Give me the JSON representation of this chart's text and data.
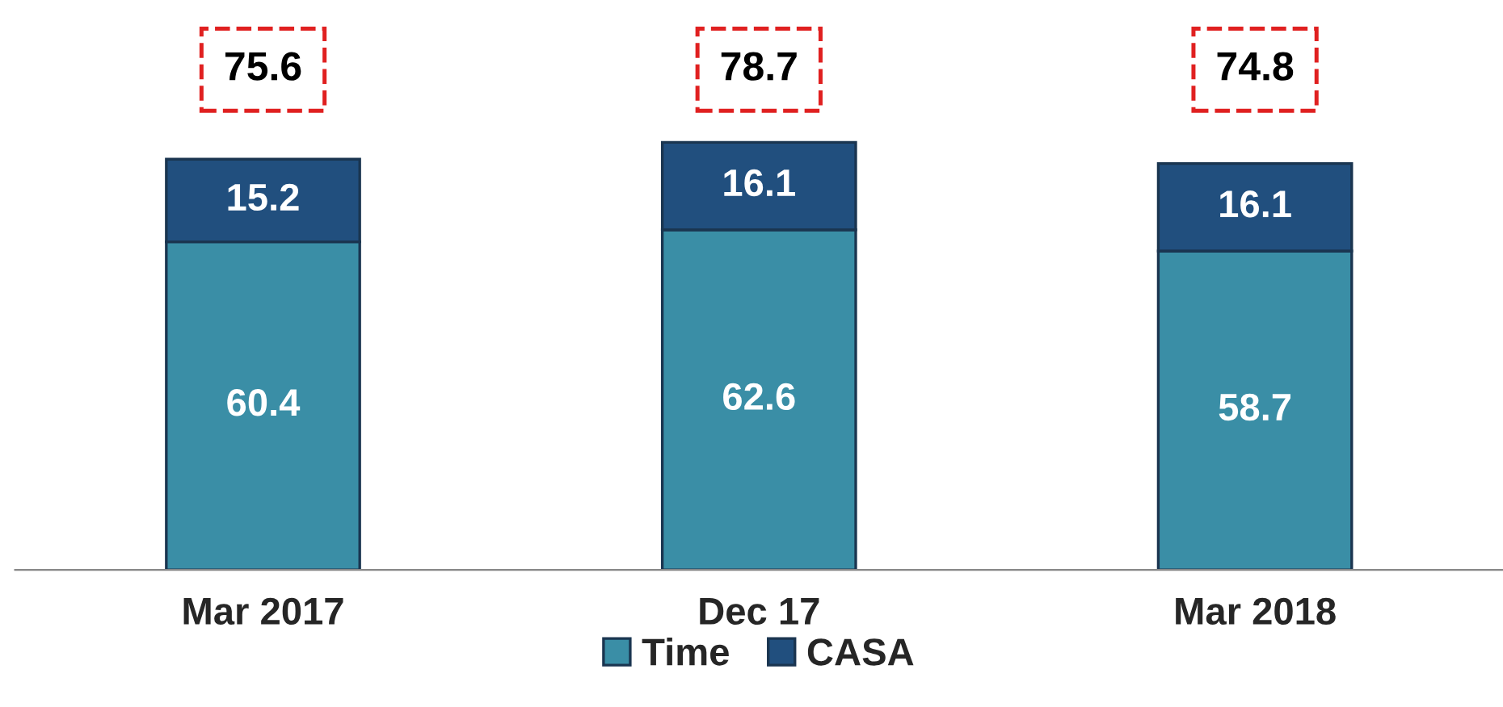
{
  "chart_data": {
    "type": "bar",
    "stacked": true,
    "categories": [
      "Mar 2017",
      "Dec 17",
      "Mar 2018"
    ],
    "series": [
      {
        "name": "Time",
        "color": "#3a8ea6",
        "values": [
          60.4,
          62.6,
          58.7
        ]
      },
      {
        "name": "CASA",
        "color": "#214f7e",
        "values": [
          15.2,
          16.1,
          16.1
        ]
      }
    ],
    "data_labels": true,
    "totals": [
      "75.6",
      "78.7",
      "74.8"
    ],
    "legend": "bottom",
    "grid": false
  }
}
